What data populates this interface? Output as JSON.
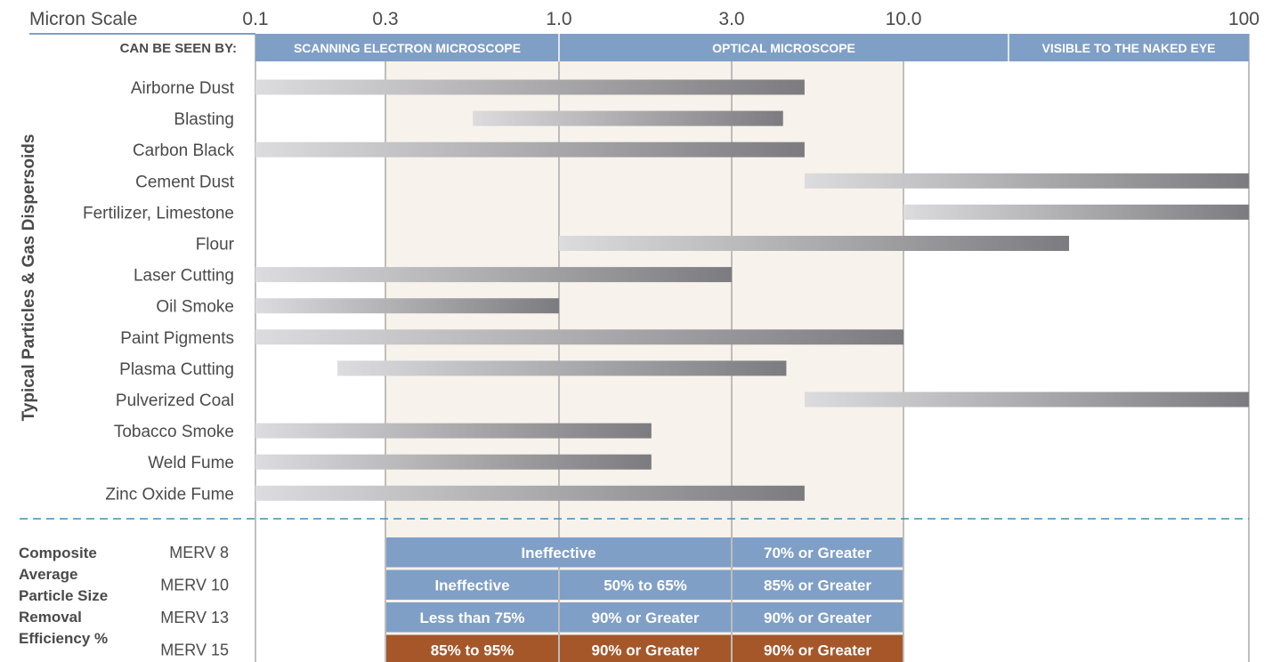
{
  "chart_data": {
    "type": "bar",
    "scale_label": "Micron Scale",
    "ticks": [
      {
        "value": 0.1,
        "label": "0.1"
      },
      {
        "value": 0.3,
        "label": "0.3"
      },
      {
        "value": 1.0,
        "label": "1.0"
      },
      {
        "value": 3.0,
        "label": "3.0"
      },
      {
        "value": 10.0,
        "label": "10.0"
      },
      {
        "value": 100,
        "label": "100"
      }
    ],
    "xlim": [
      0.1,
      100
    ],
    "log_scale": true,
    "seen_by_label": "CAN BE SEEN BY:",
    "seen_by": [
      {
        "label": "SCANNING ELECTRON MICROSCOPE",
        "from": 0.1,
        "to": 1.0
      },
      {
        "label": "OPTICAL MICROSCOPE",
        "from": 1.0,
        "to": 20
      },
      {
        "label": "VISIBLE TO THE NAKED EYE",
        "from": 20,
        "to": 100
      }
    ],
    "ylabel": "Typical Particles & Gas Dispersoids",
    "shaded_range": [
      0.3,
      10.0
    ],
    "particles": [
      {
        "name": "Airborne Dust",
        "min": 0.1,
        "max": 5.0
      },
      {
        "name": "Blasting",
        "min": 0.55,
        "max": 4.3
      },
      {
        "name": "Carbon Black",
        "min": 0.1,
        "max": 5.0
      },
      {
        "name": "Cement Dust",
        "min": 5.0,
        "max": 100
      },
      {
        "name": "Fertilizer, Limestone",
        "min": 10.0,
        "max": 100
      },
      {
        "name": "Flour",
        "min": 1.0,
        "max": 30
      },
      {
        "name": "Laser Cutting",
        "min": 0.1,
        "max": 3.0
      },
      {
        "name": "Oil Smoke",
        "min": 0.1,
        "max": 1.0
      },
      {
        "name": "Paint Pigments",
        "min": 0.1,
        "max": 10.0
      },
      {
        "name": "Plasma Cutting",
        "min": 0.2,
        "max": 4.4
      },
      {
        "name": "Pulverized Coal",
        "min": 5.0,
        "max": 100
      },
      {
        "name": "Tobacco Smoke",
        "min": 0.1,
        "max": 1.8
      },
      {
        "name": "Weld Fume",
        "min": 0.1,
        "max": 1.8
      },
      {
        "name": "Zinc Oxide Fume",
        "min": 0.1,
        "max": 5.0
      }
    ],
    "efficiency_label_lines": [
      "Composite",
      "Average",
      "Particle Size",
      "Removal",
      "Efficiency %"
    ],
    "merv": [
      {
        "rating": "MERV 8",
        "cells": [
          {
            "text": "Ineffective",
            "from": 0.3,
            "to": 3.0,
            "color": "#7f9fc6"
          },
          {
            "text": "70% or Greater",
            "from": 3.0,
            "to": 10.0,
            "color": "#7f9fc6"
          }
        ]
      },
      {
        "rating": "MERV 10",
        "cells": [
          {
            "text": "Ineffective",
            "from": 0.3,
            "to": 1.0,
            "color": "#7f9fc6"
          },
          {
            "text": "50% to 65%",
            "from": 1.0,
            "to": 3.0,
            "color": "#7f9fc6"
          },
          {
            "text": "85% or Greater",
            "from": 3.0,
            "to": 10.0,
            "color": "#7f9fc6"
          }
        ]
      },
      {
        "rating": "MERV 13",
        "cells": [
          {
            "text": "Less than 75%",
            "from": 0.3,
            "to": 1.0,
            "color": "#7f9fc6"
          },
          {
            "text": "90% or Greater",
            "from": 1.0,
            "to": 3.0,
            "color": "#7f9fc6"
          },
          {
            "text": "90% or Greater",
            "from": 3.0,
            "to": 10.0,
            "color": "#7f9fc6"
          }
        ]
      },
      {
        "rating": "MERV 15",
        "cells": [
          {
            "text": "85% to 95%",
            "from": 0.3,
            "to": 1.0,
            "color": "#a5572a"
          },
          {
            "text": "90% or Greater",
            "from": 1.0,
            "to": 3.0,
            "color": "#a5572a"
          },
          {
            "text": "90% or Greater",
            "from": 3.0,
            "to": 10.0,
            "color": "#a5572a"
          }
        ]
      }
    ],
    "colors": {
      "band": "#7f9fc6",
      "shade": "#f7f2ec",
      "bar_light": "#dcdcde",
      "bar_dark": "#7c7c80",
      "divider": "#3d8fb7",
      "axis_line": "#7f9fc6"
    }
  }
}
